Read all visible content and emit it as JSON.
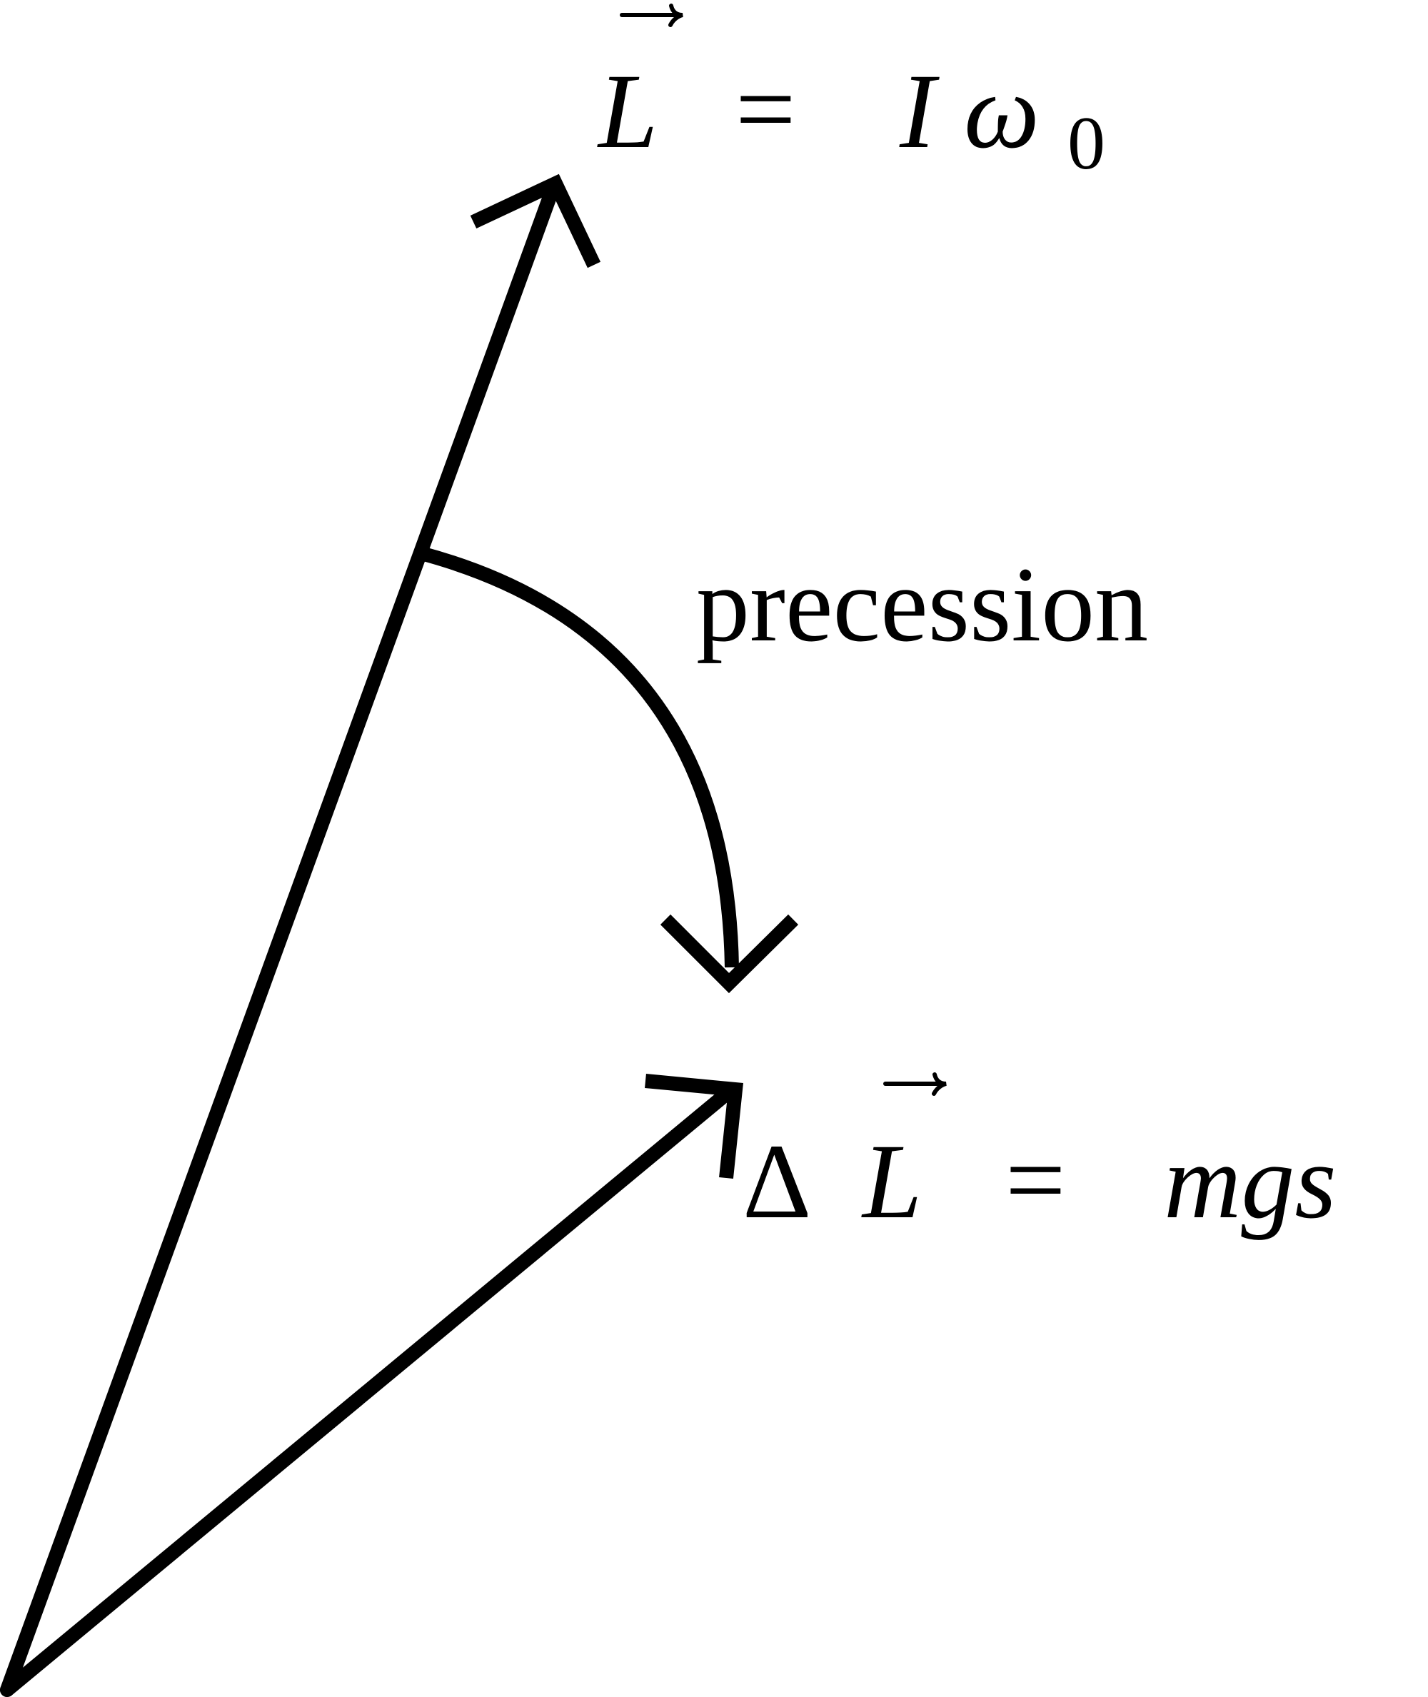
{
  "colors": {
    "ink": "#000000",
    "background": "#ffffff"
  },
  "labels": {
    "angular_momentum": {
      "symbol": "L",
      "equals": "=",
      "rhs_var": "I",
      "rhs_omega": "ω",
      "rhs_subscript": "0"
    },
    "change_in_angular_momentum": {
      "delta": "Δ",
      "symbol": "L",
      "equals": "=",
      "rhs": "mgs"
    },
    "precession": "precession"
  },
  "icons": {
    "vector_L": "arrow-icon",
    "vector_delta_L": "arrow-icon",
    "precession_arc": "curved-arrow-icon"
  }
}
